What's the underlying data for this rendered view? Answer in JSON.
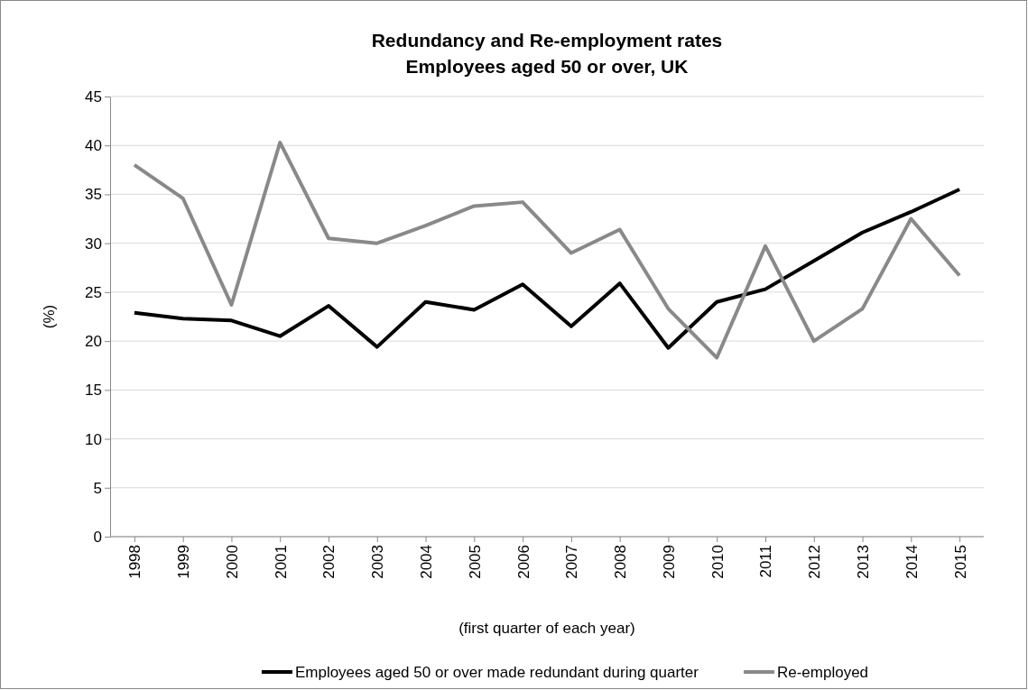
{
  "chart_data": {
    "type": "line",
    "title": "Redundancy and Re-employment rates\nEmployees aged 50 or over, UK",
    "xlabel": "(first quarter of each year)",
    "ylabel": "(%)",
    "categories": [
      "1998",
      "1999",
      "2000",
      "2001",
      "2002",
      "2003",
      "2004",
      "2005",
      "2006",
      "2007",
      "2008",
      "2009",
      "2010",
      "2011",
      "2012",
      "2013",
      "2014",
      "2015"
    ],
    "series": [
      {
        "name": "Employees aged 50 or over made redundant during quarter",
        "color": "#000000",
        "values": [
          22.9,
          22.3,
          22.1,
          20.5,
          23.6,
          19.4,
          24.0,
          23.2,
          25.8,
          21.5,
          25.9,
          19.3,
          24.0,
          25.3,
          28.2,
          31.1,
          33.2,
          35.5
        ]
      },
      {
        "name": "Re-employed",
        "color": "#898989",
        "values": [
          38.0,
          34.6,
          23.7,
          40.3,
          30.5,
          30.0,
          31.8,
          33.8,
          34.2,
          29.0,
          31.4,
          23.3,
          18.3,
          29.7,
          20.0,
          23.3,
          32.5,
          26.7
        ]
      }
    ],
    "ylim": [
      0,
      45
    ],
    "yticks": [
      0,
      5,
      10,
      15,
      20,
      25,
      30,
      35,
      40,
      45
    ],
    "grid": "y",
    "legend": "bottom",
    "marker": "none",
    "line_style": "solid"
  }
}
